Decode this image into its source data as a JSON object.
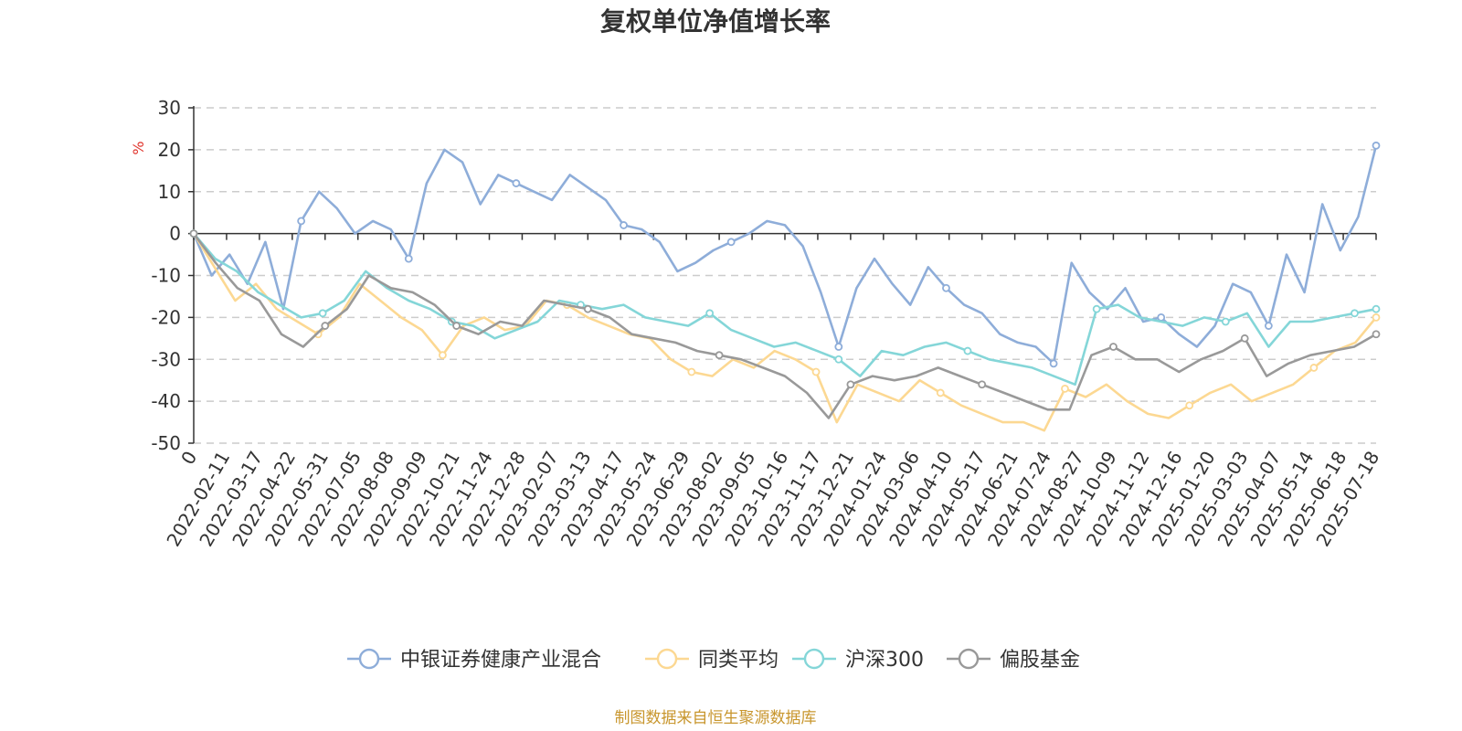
{
  "chart_data": {
    "type": "line",
    "title": "复权单位净值增长率",
    "ylabel": "%",
    "ylim": [
      -50,
      30
    ],
    "yticks": [
      "30",
      "20",
      "10",
      "0",
      "-10",
      "-20",
      "-30",
      "-40",
      "-50"
    ],
    "x_tick_labels": [
      "0",
      "2022-02-11",
      "2022-03-17",
      "2022-04-22",
      "2022-05-31",
      "2022-07-05",
      "2022-08-08",
      "2022-09-09",
      "2022-10-21",
      "2022-11-24",
      "2022-12-28",
      "2023-02-07",
      "2023-03-13",
      "2023-04-17",
      "2023-05-24",
      "2023-06-29",
      "2023-08-02",
      "2023-09-05",
      "2023-10-16",
      "2023-11-17",
      "2023-12-21",
      "2024-01-24",
      "2024-03-06",
      "2024-04-10",
      "2024-05-17",
      "2024-06-21",
      "2024-07-24",
      "2024-08-27",
      "2024-10-09",
      "2024-11-12",
      "2024-12-16",
      "2025-01-20",
      "2025-03-03",
      "2025-04-07",
      "2025-05-14",
      "2025-06-18",
      "2025-07-18"
    ],
    "grid": true,
    "legend_position": "bottom",
    "series": [
      {
        "name": "中银证券健康产业混合",
        "color": "#8eadd9",
        "values": [
          0,
          -10,
          -5,
          -12,
          -2,
          -18,
          3,
          10,
          6,
          0,
          3,
          1,
          -6,
          12,
          20,
          17,
          7,
          14,
          12,
          10,
          8,
          14,
          11,
          8,
          2,
          1,
          -2,
          -9,
          -7,
          -4,
          -2,
          0,
          3,
          2,
          -3,
          -14,
          -27,
          -13,
          -6,
          -12,
          -17,
          -8,
          -13,
          -17,
          -19,
          -24,
          -26,
          -27,
          -31,
          -7,
          -14,
          -18,
          -13,
          -21,
          -20,
          -24,
          -27,
          -22,
          -12,
          -14,
          -22,
          -5,
          -14,
          7,
          -4,
          4,
          21
        ]
      },
      {
        "name": "同类平均",
        "color": "#fcd892",
        "values": [
          0,
          -8,
          -16,
          -12,
          -18,
          -21,
          -24,
          -20,
          -12,
          -16,
          -20,
          -23,
          -29,
          -22,
          -20,
          -23,
          -22,
          -16,
          -17,
          -20,
          -22,
          -24,
          -25,
          -30,
          -33,
          -34,
          -30,
          -32,
          -28,
          -30,
          -33,
          -45,
          -36,
          -38,
          -40,
          -35,
          -38,
          -41,
          -43,
          -45,
          -45,
          -47,
          -37,
          -39,
          -36,
          -40,
          -43,
          -44,
          -41,
          -38,
          -36,
          -40,
          -38,
          -36,
          -32,
          -28,
          -26,
          -20
        ]
      },
      {
        "name": "沪深300",
        "color": "#84d6d8",
        "values": [
          0,
          -6,
          -9,
          -14,
          -17,
          -20,
          -19,
          -16,
          -9,
          -13,
          -16,
          -18,
          -21,
          -22,
          -25,
          -23,
          -21,
          -16,
          -17,
          -18,
          -17,
          -20,
          -21,
          -22,
          -19,
          -23,
          -25,
          -27,
          -26,
          -28,
          -30,
          -34,
          -28,
          -29,
          -27,
          -26,
          -28,
          -30,
          -31,
          -32,
          -34,
          -36,
          -18,
          -17,
          -20,
          -21,
          -22,
          -20,
          -21,
          -19,
          -27,
          -21,
          -21,
          -20,
          -19,
          -18
        ]
      },
      {
        "name": "偏股基金",
        "color": "#999999",
        "values": [
          0,
          -7,
          -13,
          -16,
          -24,
          -27,
          -22,
          -18,
          -10,
          -13,
          -14,
          -17,
          -22,
          -24,
          -21,
          -22,
          -16,
          -17,
          -18,
          -20,
          -24,
          -25,
          -26,
          -28,
          -29,
          -30,
          -32,
          -34,
          -38,
          -44,
          -36,
          -34,
          -35,
          -34,
          -32,
          -34,
          -36,
          -38,
          -40,
          -42,
          -42,
          -29,
          -27,
          -30,
          -30,
          -33,
          -30,
          -28,
          -25,
          -34,
          -31,
          -29,
          -28,
          -27,
          -24
        ]
      }
    ]
  },
  "source_text": "制图数据来自恒生聚源数据库",
  "colors": {
    "unit_label": "#e0342c",
    "source_text": "#c8962d",
    "axis": "#333333",
    "grid": "#cccccc"
  }
}
